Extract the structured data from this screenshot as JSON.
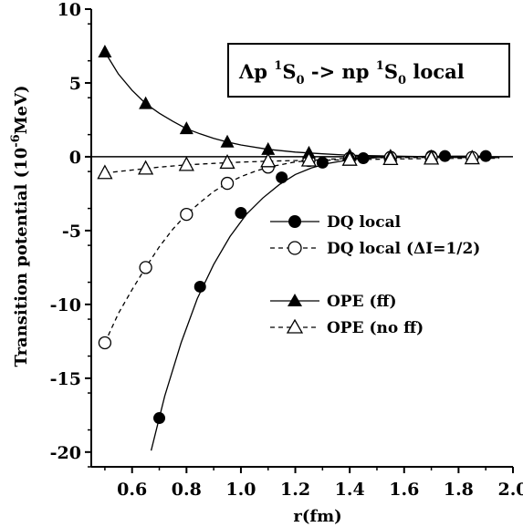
{
  "chart_data": {
    "type": "scatter",
    "title": {
      "main": "Λp ",
      "sup1": "1",
      "s1": "S",
      "sub1": "0",
      "arrow": " -> np ",
      "sup2": "1",
      "s2": "S",
      "sub2": "0",
      "tail": " local"
    },
    "xlabel": "r(fm)",
    "ylabel": {
      "main": "Transition potential (10",
      "sup": "-6",
      "unit": "MeV)"
    },
    "xlim": [
      0.45,
      2.0
    ],
    "ylim": [
      -21,
      10
    ],
    "xticks": [
      "0.6",
      "0.8",
      "1.0",
      "1.2",
      "1.4",
      "1.6",
      "1.8",
      "2.0"
    ],
    "xtick_values": [
      0.6,
      0.8,
      1.0,
      1.2,
      1.4,
      1.6,
      1.8,
      2.0
    ],
    "yticks": [
      "10",
      "5",
      "0",
      "-5",
      "-10",
      "-15",
      "-20"
    ],
    "ytick_values": [
      10,
      5,
      0,
      -5,
      -10,
      -15,
      -20
    ],
    "grid": false,
    "legend_position": "right",
    "series": [
      {
        "name": "DQ local",
        "marker": "filled-circle",
        "line": "solid",
        "x": [
          0.7,
          0.85,
          1.0,
          1.15,
          1.3,
          1.45,
          1.55,
          1.7,
          1.75,
          1.9
        ],
        "y": [
          -17.7,
          -8.8,
          -3.8,
          -1.4,
          -0.4,
          -0.1,
          0.0,
          0.05,
          0.05,
          0.05
        ],
        "curve_x": [
          0.67,
          0.72,
          0.78,
          0.84,
          0.9,
          0.96,
          1.02,
          1.08,
          1.14,
          1.2,
          1.26,
          1.32,
          1.4,
          1.5,
          1.6,
          1.7,
          1.8,
          1.9
        ],
        "curve_y": [
          -19.9,
          -16.2,
          -12.6,
          -9.6,
          -7.3,
          -5.4,
          -3.9,
          -2.8,
          -1.9,
          -1.2,
          -0.75,
          -0.45,
          -0.2,
          -0.05,
          0.0,
          0.03,
          0.04,
          0.05
        ]
      },
      {
        "name": "DQ local (ΔI=1/2)",
        "marker": "open-circle",
        "line": "dashed",
        "x": [
          0.5,
          0.65,
          0.8,
          0.95,
          1.1,
          1.25,
          1.4,
          1.55,
          1.7,
          1.85
        ],
        "y": [
          -12.6,
          -7.5,
          -3.9,
          -1.8,
          -0.7,
          -0.25,
          -0.1,
          -0.05,
          -0.05,
          -0.05
        ],
        "curve_x": [
          0.5,
          0.55,
          0.6,
          0.65,
          0.7,
          0.75,
          0.8,
          0.85,
          0.9,
          0.95,
          1.0,
          1.05,
          1.1,
          1.2,
          1.3,
          1.4,
          1.55,
          1.7,
          1.85,
          1.95
        ],
        "curve_y": [
          -12.6,
          -10.6,
          -9.0,
          -7.5,
          -6.1,
          -4.9,
          -3.9,
          -3.1,
          -2.35,
          -1.8,
          -1.35,
          -1.0,
          -0.7,
          -0.35,
          -0.18,
          -0.1,
          -0.05,
          -0.05,
          -0.05,
          -0.05
        ]
      },
      {
        "name": "OPE (ff)",
        "marker": "filled-triangle",
        "line": "solid",
        "x": [
          0.5,
          0.65,
          0.8,
          0.95,
          1.1,
          1.25,
          1.4,
          1.55,
          1.7,
          1.85
        ],
        "y": [
          7.1,
          3.6,
          1.9,
          1.0,
          0.5,
          0.25,
          0.1,
          0.05,
          0.0,
          -0.05
        ],
        "curve_x": [
          0.5,
          0.55,
          0.6,
          0.65,
          0.7,
          0.75,
          0.8,
          0.85,
          0.9,
          0.95,
          1.0,
          1.1,
          1.2,
          1.3,
          1.4,
          1.55,
          1.7,
          1.85,
          1.95
        ],
        "curve_y": [
          7.1,
          5.6,
          4.5,
          3.6,
          2.95,
          2.4,
          1.9,
          1.55,
          1.25,
          1.0,
          0.8,
          0.5,
          0.32,
          0.2,
          0.1,
          0.05,
          0.0,
          -0.05,
          -0.05
        ]
      },
      {
        "name": "OPE (no ff)",
        "marker": "open-triangle",
        "line": "dashed",
        "x": [
          0.5,
          0.65,
          0.8,
          0.95,
          1.1,
          1.25,
          1.4,
          1.55,
          1.7,
          1.85
        ],
        "y": [
          -1.1,
          -0.8,
          -0.55,
          -0.4,
          -0.3,
          -0.25,
          -0.2,
          -0.15,
          -0.12,
          -0.1
        ],
        "curve_x": [
          0.5,
          0.6,
          0.7,
          0.8,
          0.9,
          1.0,
          1.1,
          1.2,
          1.3,
          1.4,
          1.55,
          1.7,
          1.85,
          1.95
        ],
        "curve_y": [
          -1.1,
          -0.9,
          -0.7,
          -0.55,
          -0.45,
          -0.36,
          -0.3,
          -0.26,
          -0.23,
          -0.2,
          -0.15,
          -0.12,
          -0.1,
          -0.1
        ]
      }
    ]
  }
}
